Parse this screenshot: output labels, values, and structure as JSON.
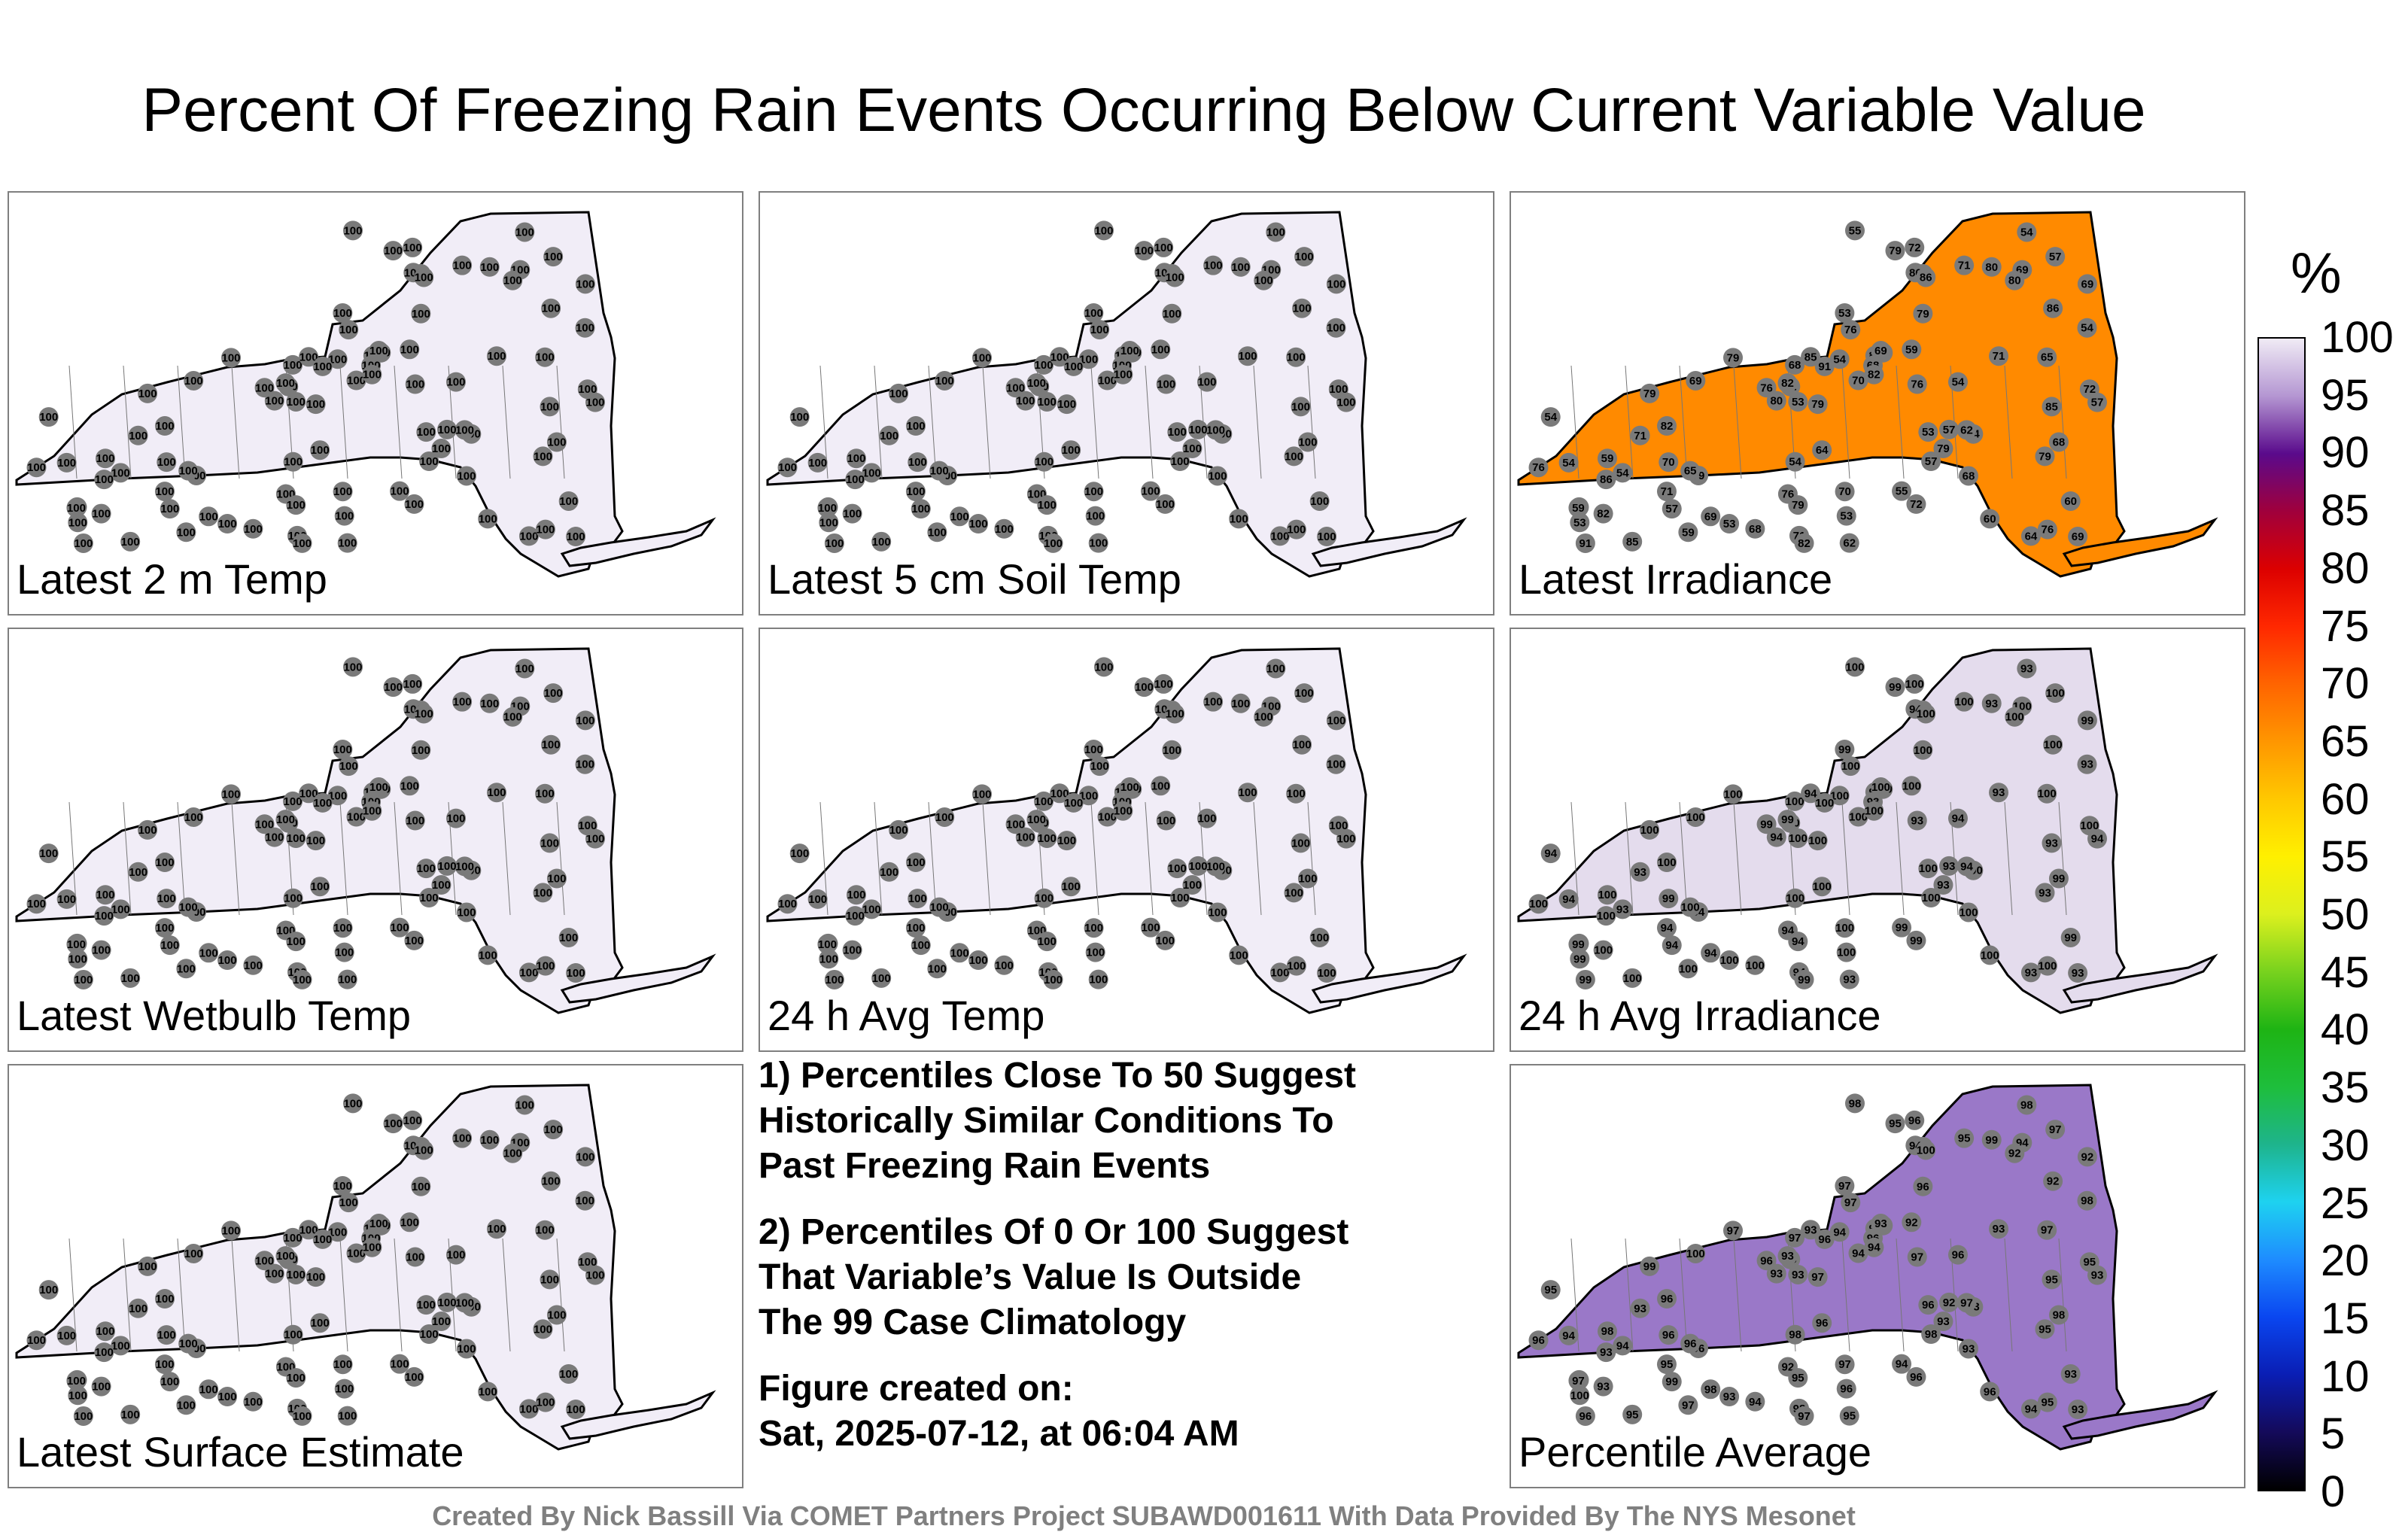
{
  "title": "Percent Of Freezing Rain Events Occurring Below Current Variable Value",
  "unit": "%",
  "footer": "Created By Nick Bassill Via COMET Partners Project SUBAWD001611 With Data Provided By The NYS Mesonet",
  "notes": {
    "n1": [
      "1) Percentiles Close To 50 Suggest",
      "Historically Similar Conditions To",
      "Past Freezing Rain Events"
    ],
    "n2": [
      "2) Percentiles Of 0 Or 100 Suggest",
      "That Variable’s Value Is Outside",
      "The 99 Case Climatology"
    ],
    "n3": [
      "Figure created on:",
      "Sat, 2025-07-12, at 06:04 AM"
    ]
  },
  "colorbar": {
    "ticks": [
      "100",
      "95",
      "90",
      "85",
      "80",
      "75",
      "70",
      "65",
      "60",
      "55",
      "50",
      "45",
      "40",
      "35",
      "30",
      "25",
      "20",
      "15",
      "10",
      "5",
      "0"
    ],
    "stops": [
      {
        "v": 0,
        "c": "#000000"
      },
      {
        "v": 5,
        "c": "#140a5a"
      },
      {
        "v": 10,
        "c": "#0a1eb4"
      },
      {
        "v": 15,
        "c": "#0a46f0"
      },
      {
        "v": 20,
        "c": "#1e8cff"
      },
      {
        "v": 25,
        "c": "#1ed2f0"
      },
      {
        "v": 30,
        "c": "#1eb48c"
      },
      {
        "v": 35,
        "c": "#1ebe3c"
      },
      {
        "v": 40,
        "c": "#1eb414"
      },
      {
        "v": 45,
        "c": "#78d21e"
      },
      {
        "v": 50,
        "c": "#dcf01e"
      },
      {
        "v": 55,
        "c": "#fff000"
      },
      {
        "v": 60,
        "c": "#ffc800"
      },
      {
        "v": 65,
        "c": "#ff9600"
      },
      {
        "v": 70,
        "c": "#ff6400"
      },
      {
        "v": 75,
        "c": "#ff2800"
      },
      {
        "v": 80,
        "c": "#dc0000"
      },
      {
        "v": 85,
        "c": "#a0003c"
      },
      {
        "v": 90,
        "c": "#5a0a8c"
      },
      {
        "v": 95,
        "c": "#b496d2"
      },
      {
        "v": 100,
        "c": "#f0ebf5"
      }
    ]
  },
  "panels": [
    {
      "label": "Latest 2 m Temp",
      "fill": "#f1edf7",
      "sample": [
        "100"
      ]
    },
    {
      "label": "Latest 5 cm Soil Temp",
      "fill": "#f1edf7",
      "sample": [
        "100"
      ]
    },
    {
      "label": "Latest Irradiance",
      "fill": "#ff8a00",
      "sample": [
        "79",
        "82",
        "86",
        "86",
        "79",
        "72",
        "71",
        "70",
        "69",
        "69",
        "80",
        "79",
        "85",
        "76",
        "54",
        "53",
        "57",
        "59",
        "54",
        "53",
        "54",
        "82",
        "76",
        "68",
        "71",
        "65",
        "64",
        "60",
        "62",
        "55",
        "57",
        "59",
        "68",
        "91"
      ]
    },
    {
      "label": "Latest Wetbulb Temp",
      "fill": "#f1edf7",
      "sample": [
        "100"
      ]
    },
    {
      "label": "24 h Avg Temp",
      "fill": "#f1edf7",
      "sample": [
        "100"
      ]
    },
    {
      "label": "24 h Avg Irradiance",
      "fill": "#e4dced",
      "sample": [
        "100",
        "100",
        "93",
        "99",
        "94",
        "100"
      ]
    },
    {
      "label": "Latest Surface Estimate",
      "fill": "#f1edf7",
      "sample": [
        "100"
      ]
    },
    {
      "label": "Percentile Average",
      "fill": "#9a78c8",
      "sample": [
        "97",
        "98",
        "98",
        "97",
        "96",
        "96",
        "95",
        "94",
        "93",
        "92",
        "93",
        "96",
        "95",
        "97",
        "94",
        "100",
        "99",
        "95",
        "93",
        "96",
        "98",
        "93",
        "92",
        "97",
        "95",
        "96",
        "94",
        "93"
      ]
    }
  ]
}
